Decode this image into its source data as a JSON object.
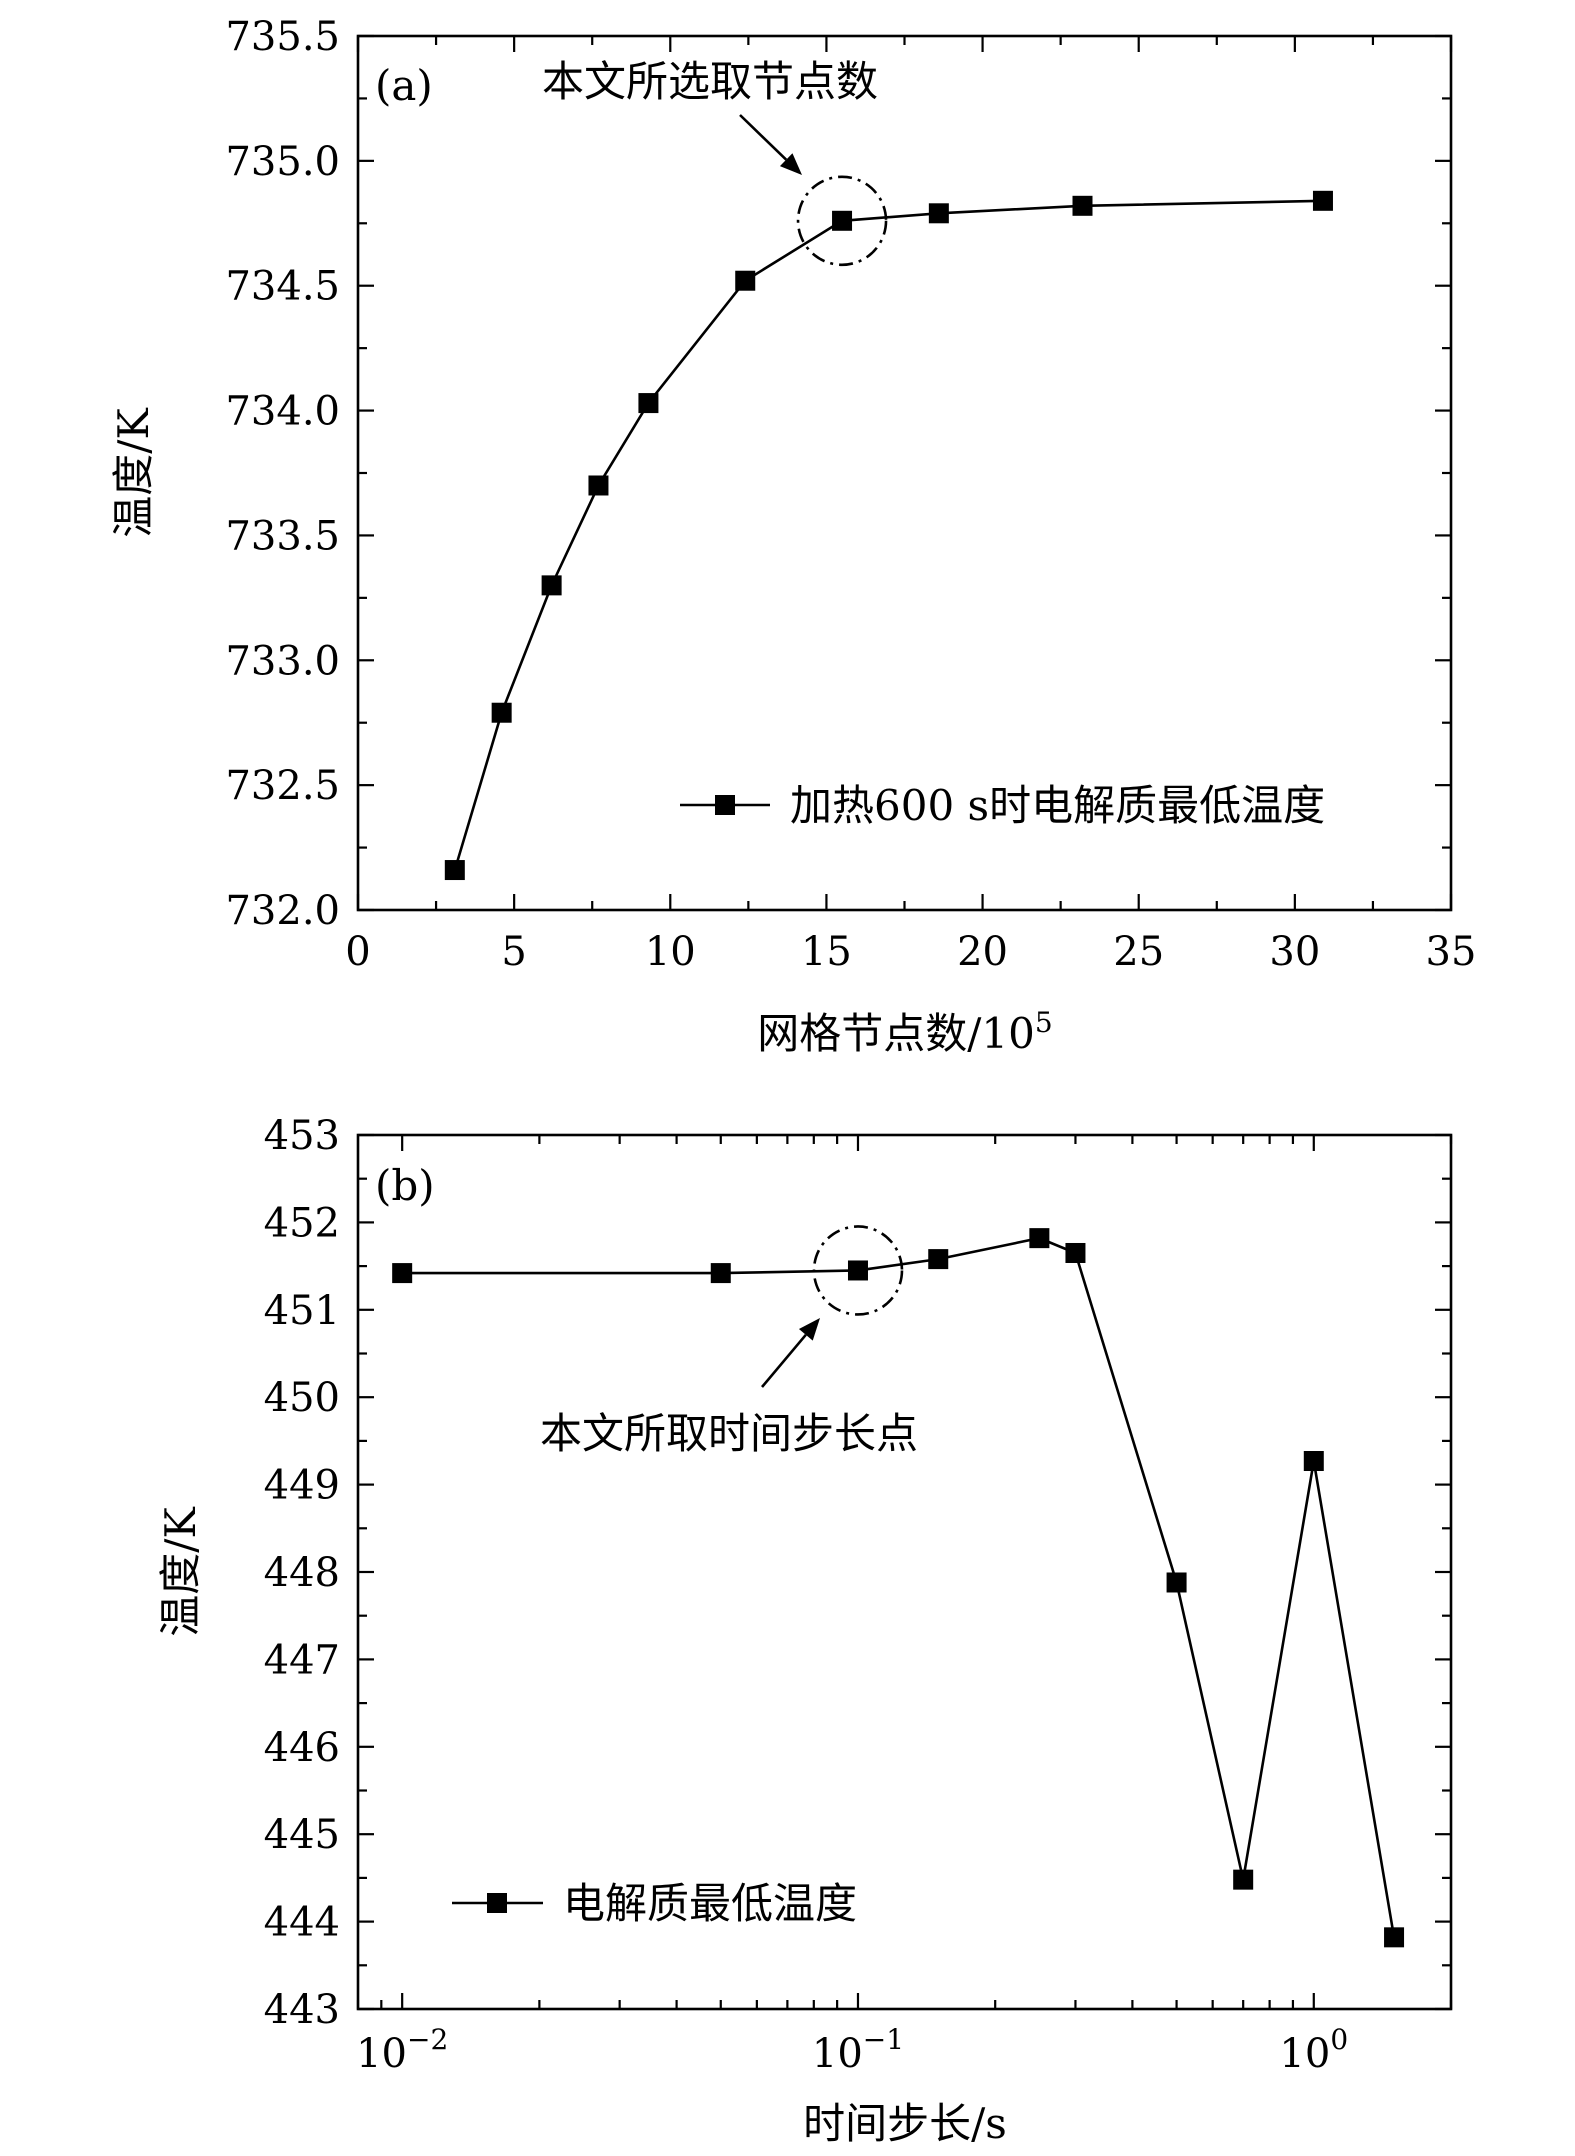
{
  "chart_data": [
    {
      "type": "line",
      "panel_label": "(a)",
      "xlabel": "网格节点数/10",
      "xlabel_sup": "5",
      "ylabel": "温度/K",
      "xlim": [
        0,
        35
      ],
      "ylim": [
        732.0,
        735.5
      ],
      "xscale": "linear",
      "xticks": [
        0,
        5,
        10,
        15,
        20,
        25,
        30,
        35
      ],
      "xtick_labels": [
        "0",
        "5",
        "10",
        "15",
        "20",
        "25",
        "30",
        "35"
      ],
      "yticks": [
        732.0,
        732.5,
        733.0,
        733.5,
        734.0,
        734.5,
        735.0,
        735.5
      ],
      "ytick_labels": [
        "732.0",
        "732.5",
        "733.0",
        "733.5",
        "734.0",
        "734.5",
        "735.0",
        "735.5"
      ],
      "series": [
        {
          "name": "加热600 s时电解质最低温度",
          "marker": "square",
          "x": [
            3.1,
            4.6,
            6.2,
            7.7,
            9.3,
            12.4,
            15.5,
            18.6,
            23.2,
            30.9
          ],
          "y": [
            732.16,
            732.79,
            733.3,
            733.7,
            734.03,
            734.52,
            734.76,
            734.79,
            734.82,
            734.84
          ]
        }
      ],
      "legend": {
        "position": "bottom-right"
      },
      "annotation": {
        "text": "本文所选取节点数",
        "target_x": 15.5,
        "target_y": 734.76
      }
    },
    {
      "type": "line",
      "panel_label": "(b)",
      "xlabel": "时间步长/s",
      "ylabel": "温度/K",
      "xlim": [
        0.008,
        2.0
      ],
      "ylim": [
        443,
        453
      ],
      "xscale": "log",
      "xticks": [
        0.01,
        0.1,
        1
      ],
      "xtick_labels": [
        {
          "base": "10",
          "exp": "−2"
        },
        {
          "base": "10",
          "exp": "−1"
        },
        {
          "base": "10",
          "exp": "0"
        }
      ],
      "yticks": [
        443,
        444,
        445,
        446,
        447,
        448,
        449,
        450,
        451,
        452,
        453
      ],
      "ytick_labels": [
        "443",
        "444",
        "445",
        "446",
        "447",
        "448",
        "449",
        "450",
        "451",
        "452",
        "453"
      ],
      "series": [
        {
          "name": "电解质最低温度",
          "marker": "square",
          "x": [
            0.01,
            0.05,
            0.1,
            0.15,
            0.25,
            0.3,
            0.5,
            0.7,
            1.0,
            1.5
          ],
          "y": [
            451.42,
            451.42,
            451.45,
            451.58,
            451.82,
            451.65,
            447.88,
            444.48,
            449.27,
            443.82
          ]
        }
      ],
      "legend": {
        "position": "bottom-left"
      },
      "annotation": {
        "text": "本文所取时间步长点",
        "target_x": 0.1,
        "target_y": 451.45
      }
    }
  ]
}
